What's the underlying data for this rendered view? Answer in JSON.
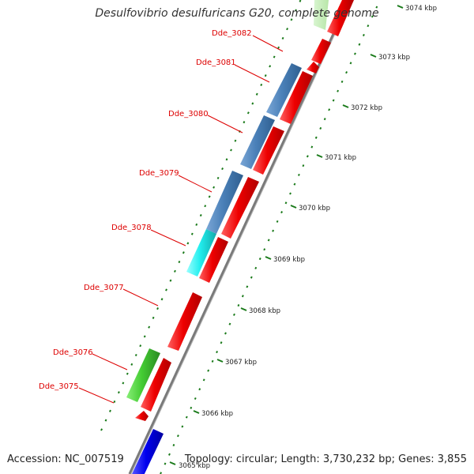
{
  "header": {
    "title": "Desulfovibrio desulfuricans G20, complete genome"
  },
  "footer": {
    "accession": "Accession: NC_007519",
    "summary": "Topology: circular; Length: 3,730,232 bp; Genes: 3,855"
  },
  "scale": {
    "ticks": [
      {
        "label": "3065 kbp",
        "kbp": 3065
      },
      {
        "label": "3066 kbp",
        "kbp": 3066
      },
      {
        "label": "3067 kbp",
        "kbp": 3067
      },
      {
        "label": "3068 kbp",
        "kbp": 3068
      },
      {
        "label": "3069 kbp",
        "kbp": 3069
      },
      {
        "label": "3070 kbp",
        "kbp": 3070
      },
      {
        "label": "3071 kbp",
        "kbp": 3071
      },
      {
        "label": "3072 kbp",
        "kbp": 3072
      },
      {
        "label": "3073 kbp",
        "kbp": 3073
      },
      {
        "label": "3074 kbp",
        "kbp": 3074
      }
    ]
  },
  "gene_labels": [
    {
      "label": "Dde_3075"
    },
    {
      "label": "Dde_3076"
    },
    {
      "label": "Dde_3077"
    },
    {
      "label": "Dde_3078"
    },
    {
      "label": "Dde_3079"
    },
    {
      "label": "Dde_3080"
    },
    {
      "label": "Dde_3081"
    },
    {
      "label": "Dde_3082"
    }
  ],
  "colors": {
    "cds": "#ee0000",
    "steelblue": "#4a80b8",
    "cyan": "#22eeee",
    "green": "#44cc33",
    "blue": "#0000ee",
    "backbone": "#888888",
    "tick": "#1a7a1a",
    "label": "#dd0000"
  }
}
